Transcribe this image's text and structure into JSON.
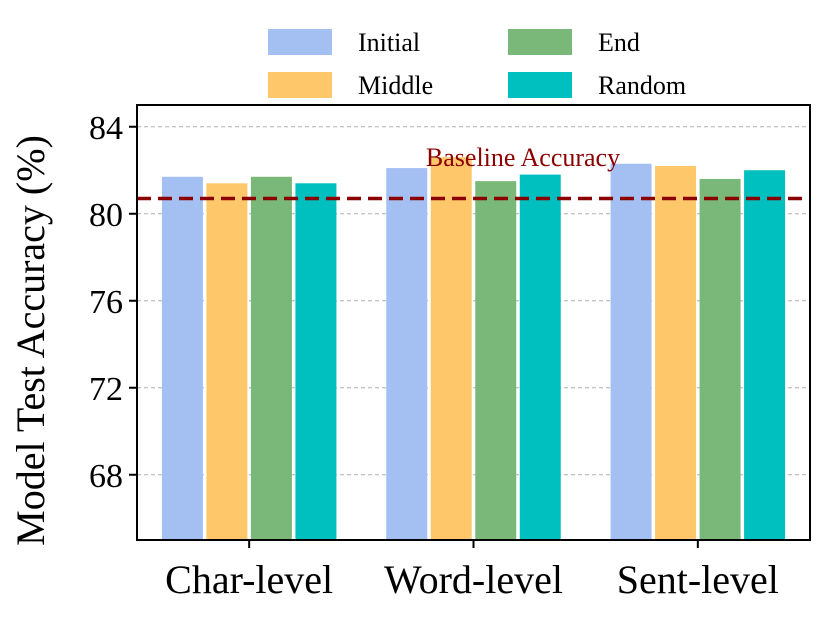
{
  "chart_data": {
    "type": "bar",
    "title": "",
    "xlabel": "",
    "ylabel": "Model Test Accuracy (%)",
    "ylim": [
      65,
      85
    ],
    "yticks": [
      68,
      72,
      76,
      80,
      84
    ],
    "grid": "horizontal dashed",
    "legend_placement": "top-center",
    "categories": [
      "Char-level",
      "Word-level",
      "Sent-level"
    ],
    "series": [
      {
        "name": "Initial",
        "color": "#a4bff2",
        "values": [
          81.7,
          82.1,
          82.3
        ]
      },
      {
        "name": "Middle",
        "color": "#fec86a",
        "values": [
          81.4,
          82.6,
          82.2
        ]
      },
      {
        "name": "End",
        "color": "#7ab879",
        "values": [
          81.7,
          81.5,
          81.6
        ]
      },
      {
        "name": "Random",
        "color": "#00bfbf",
        "values": [
          81.4,
          81.8,
          82.0
        ]
      }
    ],
    "baseline": {
      "label": "Baseline Accuracy",
      "value": 80.7,
      "color": "#8b0000"
    }
  }
}
